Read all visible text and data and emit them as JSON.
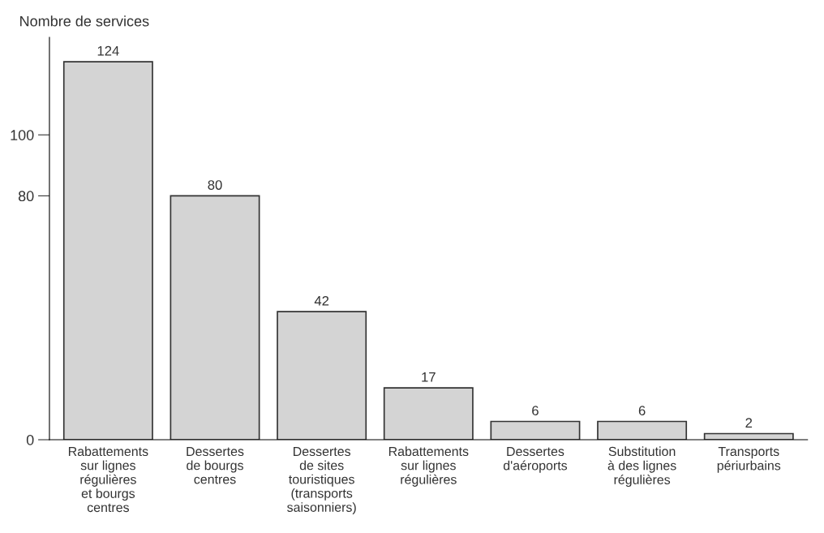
{
  "chart_data": {
    "type": "bar",
    "ylabel": "Nombre de services",
    "categories": [
      "Rabattements\nsur lignes\nrégulières\net bourgs\ncentres",
      "Dessertes\nde bourgs\ncentres",
      "Dessertes\nde sites\ntouristiques\n(transports\nsaisonniers)",
      "Rabattements\nsur lignes\nrégulières",
      "Dessertes\nd'aéroports",
      "Substitution\nà des lignes\nrégulières",
      "Transports\npériurbains"
    ],
    "values": [
      124,
      80,
      42,
      17,
      6,
      6,
      2
    ],
    "color": "#d4d4d4",
    "ylim": [
      0,
      132
    ],
    "yticks": [
      0,
      80,
      100
    ],
    "data_labels": true,
    "grid": false
  }
}
